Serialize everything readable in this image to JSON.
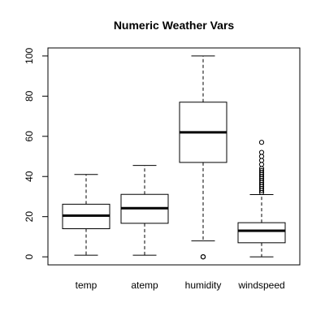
{
  "chart_data": {
    "type": "boxplot",
    "title": "Numeric Weather Vars",
    "xlabel": "",
    "ylabel": "",
    "ylim": [
      -4,
      104
    ],
    "yticks": [
      "0",
      "20",
      "40",
      "60",
      "80",
      "100"
    ],
    "grid": false,
    "legend": "none",
    "categories": [
      "temp",
      "atemp",
      "humidity",
      "windspeed"
    ],
    "boxes": [
      {
        "min": 0.8,
        "q1": 14.0,
        "median": 20.5,
        "q3": 26.2,
        "max": 41.0,
        "outliers": []
      },
      {
        "min": 0.8,
        "q1": 16.7,
        "median": 24.2,
        "q3": 31.1,
        "max": 45.5,
        "outliers": []
      },
      {
        "min": 8.0,
        "q1": 47.0,
        "median": 62.0,
        "q3": 77.0,
        "max": 100.0,
        "outliers": [
          0,
          0,
          0
        ]
      },
      {
        "min": 0.0,
        "q1": 7.0,
        "median": 13.0,
        "q3": 17.0,
        "max": 31.0,
        "outliers": [
          32.0,
          33.0,
          34.0,
          35.0,
          36.0,
          37.0,
          38.0,
          39.0,
          40.0,
          41.0,
          42.0,
          43.0,
          44.0,
          46.0,
          48.0,
          50.0,
          52.0,
          57.0
        ]
      }
    ],
    "colors": {
      "axis": "#000000",
      "box": "#000000",
      "background": "#ffffff"
    }
  }
}
